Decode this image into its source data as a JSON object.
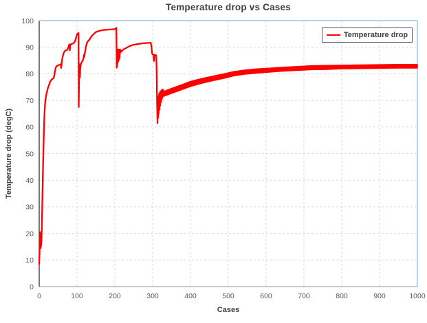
{
  "colors": {
    "series_red": "#FF0000",
    "gridline": "#D9D9D9",
    "axis_left": "#404040",
    "axis_bottom": "#A6A6A6",
    "border_top_right": "#9DC3E6",
    "text_dark": "#404040",
    "text_tick": "#595959",
    "background": "#FFFFFF"
  },
  "chart_data": {
    "type": "line",
    "title": "Temperature drop vs Cases",
    "xlabel": "Cases",
    "ylabel": "Temperature drop (degC)",
    "xlim": [
      0,
      1000
    ],
    "ylim": [
      0,
      100
    ],
    "x_ticks": [
      0,
      100,
      200,
      300,
      400,
      500,
      600,
      700,
      800,
      900,
      1000
    ],
    "y_ticks": [
      0,
      10,
      20,
      30,
      40,
      50,
      60,
      70,
      80,
      90,
      100
    ],
    "grid": true,
    "grid_style": "dashed",
    "legend": {
      "position": "top-right",
      "entries": [
        {
          "label": "Temperature drop",
          "color": "#FF0000"
        }
      ]
    },
    "series": [
      {
        "name": "Temperature drop",
        "color": "#FF0000",
        "points": [
          [
            0,
            8.5
          ],
          [
            1,
            13
          ],
          [
            2,
            20.5
          ],
          [
            3,
            17
          ],
          [
            4,
            14.5
          ],
          [
            5,
            15.5
          ],
          [
            6,
            17
          ],
          [
            7,
            22
          ],
          [
            8,
            30
          ],
          [
            9,
            37
          ],
          [
            10,
            44
          ],
          [
            11,
            50
          ],
          [
            12,
            56
          ],
          [
            13,
            61
          ],
          [
            14,
            65
          ],
          [
            15,
            67.5
          ],
          [
            16,
            69.5
          ],
          [
            18,
            71.5
          ],
          [
            20,
            73
          ],
          [
            23,
            74.6
          ],
          [
            26,
            75.8
          ],
          [
            29,
            77
          ],
          [
            32,
            77.7
          ],
          [
            35,
            78.1
          ],
          [
            38,
            78.4
          ],
          [
            40,
            79.3
          ],
          [
            42,
            81.3
          ],
          [
            44,
            82.4
          ],
          [
            46,
            82.9
          ],
          [
            49,
            83.1
          ],
          [
            52,
            83.3
          ],
          [
            55,
            83.5
          ],
          [
            57,
            83.6
          ],
          [
            58,
            82.2
          ],
          [
            59,
            83.2
          ],
          [
            60,
            84.8
          ],
          [
            62,
            86.3
          ],
          [
            64,
            87.5
          ],
          [
            66,
            88.2
          ],
          [
            68,
            88.6
          ],
          [
            71,
            88.8
          ],
          [
            74,
            89
          ],
          [
            77,
            90
          ],
          [
            79,
            90.9
          ],
          [
            80,
            91.1
          ],
          [
            81,
            88.8
          ],
          [
            82,
            90.6
          ],
          [
            84,
            91.1
          ],
          [
            87,
            91.3
          ],
          [
            90,
            91.4
          ],
          [
            93,
            91.8
          ],
          [
            95,
            92.4
          ],
          [
            97,
            93.4
          ],
          [
            99,
            94.4
          ],
          [
            101,
            95
          ],
          [
            103,
            95.3
          ],
          [
            104,
            95.3
          ],
          [
            104.3,
            80
          ],
          [
            104.6,
            67.5
          ],
          [
            105.2,
            75
          ],
          [
            106,
            82
          ],
          [
            107,
            83.6
          ],
          [
            107.6,
            78.6
          ],
          [
            108.5,
            81.5
          ],
          [
            110,
            83.6
          ],
          [
            112,
            84.3
          ],
          [
            115,
            85
          ],
          [
            117,
            85.8
          ],
          [
            118.5,
            87.2
          ],
          [
            119.5,
            86.4
          ],
          [
            121,
            88
          ],
          [
            123,
            89.8
          ],
          [
            125,
            91
          ],
          [
            127,
            91.9
          ],
          [
            130,
            92.4
          ],
          [
            133,
            92.9
          ],
          [
            136,
            93.6
          ],
          [
            140,
            94.4
          ],
          [
            145,
            95.1
          ],
          [
            150,
            95.7
          ],
          [
            156,
            96
          ],
          [
            163,
            96.3
          ],
          [
            172,
            96.5
          ],
          [
            182,
            96.6
          ],
          [
            192,
            96.7
          ],
          [
            199,
            96.8
          ],
          [
            202,
            97
          ],
          [
            204,
            97.3
          ],
          [
            204.6,
            90
          ],
          [
            205,
            82.3
          ],
          [
            205.5,
            88.8
          ],
          [
            206,
            83
          ],
          [
            206.6,
            89
          ],
          [
            207.2,
            83.8
          ],
          [
            208,
            89.2
          ],
          [
            208.8,
            84.6
          ],
          [
            209.6,
            89
          ],
          [
            210.5,
            85.2
          ],
          [
            211.5,
            89.1
          ],
          [
            212.5,
            85.8
          ],
          [
            213.5,
            89.2
          ],
          [
            215,
            88
          ],
          [
            216,
            88.8
          ],
          [
            218,
            88.4
          ],
          [
            220,
            88.8
          ],
          [
            223,
            89.2
          ],
          [
            227,
            89.5
          ],
          [
            231,
            89.8
          ],
          [
            236,
            90.2
          ],
          [
            242,
            90.6
          ],
          [
            249,
            90.9
          ],
          [
            257,
            91.1
          ],
          [
            266,
            91.3
          ],
          [
            276,
            91.5
          ],
          [
            287,
            91.6
          ],
          [
            295,
            91.7
          ],
          [
            297,
            90
          ],
          [
            298.5,
            87.6
          ],
          [
            300,
            87.3
          ],
          [
            302,
            87.2
          ],
          [
            303.5,
            84.8
          ],
          [
            304.5,
            87.1
          ],
          [
            307,
            87.1
          ],
          [
            309.5,
            86.9
          ],
          [
            310.5,
            82
          ],
          [
            311.2,
            74
          ],
          [
            312,
            67
          ],
          [
            312.8,
            61.5
          ],
          [
            313.5,
            70.5
          ],
          [
            314.2,
            63.5
          ],
          [
            315,
            71.5
          ],
          [
            316,
            65
          ],
          [
            317,
            72.5
          ],
          [
            318,
            66.5
          ],
          [
            319,
            73
          ],
          [
            320,
            68
          ],
          [
            321,
            73.4
          ],
          [
            322,
            69.3
          ],
          [
            323,
            73.7
          ],
          [
            324,
            70.3
          ],
          [
            325,
            74
          ],
          [
            326,
            71
          ],
          [
            327.5,
            74.1
          ],
          [
            329,
            71.8
          ],
          [
            330,
            72.5
          ],
          [
            350,
            73.6
          ],
          [
            370,
            74.6
          ],
          [
            400,
            76.2
          ],
          [
            430,
            77.3
          ],
          [
            460,
            78.3
          ],
          [
            490,
            79.2
          ],
          [
            515,
            80
          ],
          [
            545,
            80.6
          ],
          [
            575,
            81
          ],
          [
            602,
            81.3
          ],
          [
            640,
            81.7
          ],
          [
            680,
            82
          ],
          [
            720,
            82.3
          ],
          [
            760,
            82.4
          ],
          [
            800,
            82.6
          ],
          [
            850,
            82.7
          ],
          [
            900,
            82.8
          ],
          [
            950,
            82.8
          ],
          [
            1000,
            82.9
          ]
        ]
      }
    ],
    "band": {
      "description": "thick oscillation envelope of the series for cases 330-1000",
      "color": "#FF0000",
      "x": [
        330,
        350,
        370,
        400,
        430,
        460,
        490,
        515,
        545,
        575,
        602,
        640,
        680,
        720,
        760,
        800,
        850,
        900,
        950,
        1000
      ],
      "upper": [
        73.5,
        74.6,
        75.6,
        77.2,
        78.3,
        79.2,
        80.1,
        80.9,
        81.5,
        81.9,
        82.1,
        82.5,
        82.8,
        83.1,
        83.2,
        83.3,
        83.4,
        83.5,
        83.6,
        83.6
      ],
      "lower": [
        71.5,
        72.6,
        73.6,
        75.2,
        76.4,
        77.4,
        78.3,
        79.2,
        79.8,
        80.2,
        80.5,
        80.9,
        81.2,
        81.5,
        81.6,
        81.8,
        81.9,
        82.0,
        82.1,
        82.1
      ]
    }
  }
}
